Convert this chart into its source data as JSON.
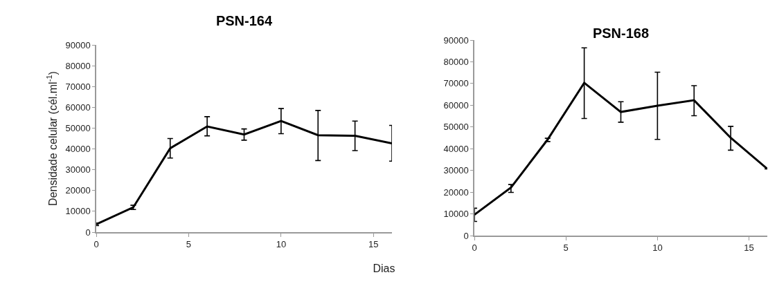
{
  "chart_data": [
    {
      "type": "line",
      "title": "PSN-164",
      "ylabel": "Densidade celular (cél.ml$^{-1}$)",
      "xlabel": "Dias",
      "x": [
        0,
        2,
        4,
        6,
        8,
        10,
        12,
        14,
        16
      ],
      "series": [
        {
          "color": "#000000",
          "values": [
            3800,
            11900,
            40300,
            50800,
            46900,
            53400,
            46600,
            46300,
            42700
          ],
          "errors": [
            [
              3200,
              4400
            ],
            [
              10900,
              12900
            ],
            [
              35600,
              45000
            ],
            [
              46300,
              55500
            ],
            [
              44200,
              49600
            ],
            [
              47300,
              59400
            ],
            [
              34400,
              58500
            ],
            [
              39200,
              53400
            ],
            [
              34100,
              51300
            ]
          ]
        }
      ],
      "xlim": [
        0,
        16
      ],
      "xticks": [
        0,
        5,
        10,
        15
      ],
      "ylim": [
        0,
        90000
      ],
      "yticks": [
        0,
        10000,
        20000,
        30000,
        40000,
        50000,
        60000,
        70000,
        80000,
        90000
      ],
      "grid": false,
      "marker": "none",
      "line_style": "solid"
    },
    {
      "type": "line",
      "title": "PSN-168",
      "x": [
        0,
        2,
        4,
        6,
        8,
        10,
        12,
        14,
        16
      ],
      "series": [
        {
          "color": "#000000",
          "values": [
            9600,
            22100,
            44200,
            70300,
            56900,
            59800,
            62300,
            45000,
            30700
          ],
          "errors": [
            [
              6500,
              12600
            ],
            [
              19900,
              23500
            ],
            [
              43300,
              44800
            ],
            [
              53900,
              86400
            ],
            [
              52200,
              61600
            ],
            [
              44300,
              75200
            ],
            [
              55200,
              69000
            ],
            [
              39300,
              50300
            ],
            null
          ]
        }
      ],
      "xlim": [
        0,
        16
      ],
      "xticks": [
        0,
        5,
        10,
        15
      ],
      "ylim": [
        0,
        90000
      ],
      "yticks": [
        0,
        10000,
        20000,
        30000,
        40000,
        50000,
        60000,
        70000,
        80000,
        90000
      ],
      "grid": false,
      "marker": "none",
      "line_style": "solid"
    }
  ]
}
